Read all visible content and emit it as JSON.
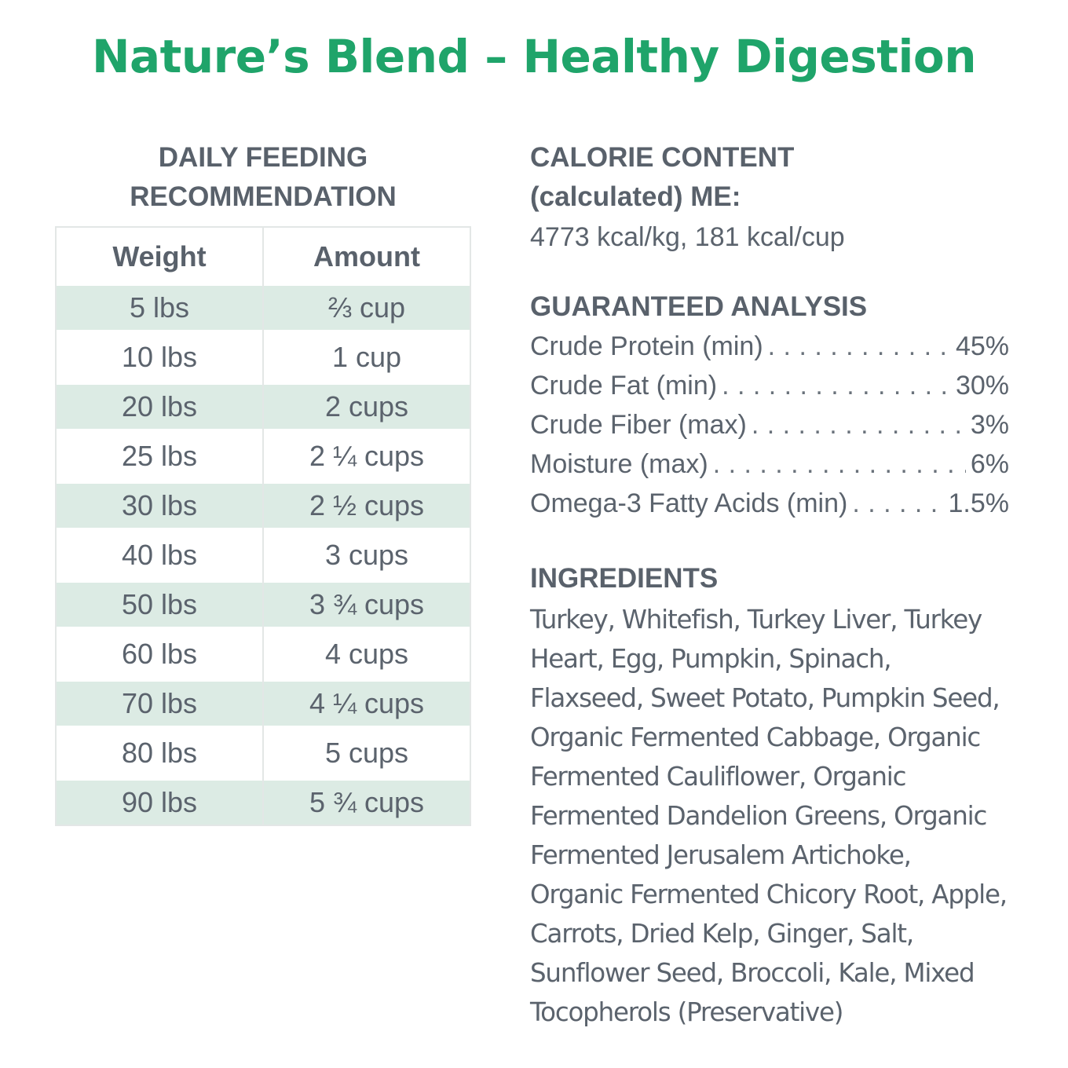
{
  "title": "Nature’s Blend – Healthy Digestion",
  "feeding": {
    "heading_line1": "DAILY FEEDING",
    "heading_line2": "RECOMMENDATION",
    "col_weight": "Weight",
    "col_amount": "Amount",
    "rows": [
      {
        "weight": "5 lbs",
        "amount": "⅔ cup"
      },
      {
        "weight": "10 lbs",
        "amount": "1 cup"
      },
      {
        "weight": "20 lbs",
        "amount": "2 cups"
      },
      {
        "weight": "25 lbs",
        "amount": "2 ¼ cups"
      },
      {
        "weight": "30 lbs",
        "amount": "2 ½ cups"
      },
      {
        "weight": "40 lbs",
        "amount": "3 cups"
      },
      {
        "weight": "50 lbs",
        "amount": "3 ¾ cups"
      },
      {
        "weight": "60 lbs",
        "amount": "4 cups"
      },
      {
        "weight": "70 lbs",
        "amount": "4 ¼ cups"
      },
      {
        "weight": "80 lbs",
        "amount": "5 cups"
      },
      {
        "weight": "90 lbs",
        "amount": "5 ¾ cups"
      }
    ]
  },
  "calorie": {
    "heading_line1": "CALORIE CONTENT",
    "heading_line2": "(calculated) ME:",
    "value": "4773 kcal/kg, 181 kcal/cup"
  },
  "analysis": {
    "heading": "GUARANTEED ANALYSIS",
    "items": [
      {
        "label": "Crude Protein (min)",
        "value": "45%"
      },
      {
        "label": "Crude Fat (min)",
        "value": "30%"
      },
      {
        "label": "Crude Fiber (max)",
        "value": "3%"
      },
      {
        "label": "Moisture (max)",
        "value": "6%"
      },
      {
        "label": "Omega-3 Fatty Acids (min)",
        "value": "1.5%"
      }
    ]
  },
  "ingredients": {
    "heading": "INGREDIENTS",
    "text": "Turkey, Whitefish, Turkey Liver, Turkey Heart, Egg, Pumpkin, Spinach, Flaxseed, Sweet Potato, Pumpkin Seed, Organic Fermented Cabbage, Organic Fermented Cauliflower, Organic Fermented Dandelion Greens, Organic Fermented Jerusalem Artichoke, Organic Fermented Chicory Root, Apple, Carrots, Dried Kelp, Ginger, Salt, Sunflower Seed, Broccoli, Kale, Mixed Tocopherols (Preservative)"
  },
  "colors": {
    "title": "#1fa46a",
    "text": "#5b636d",
    "row_shade": "#dcebe4",
    "border": "#e3e7e6"
  }
}
